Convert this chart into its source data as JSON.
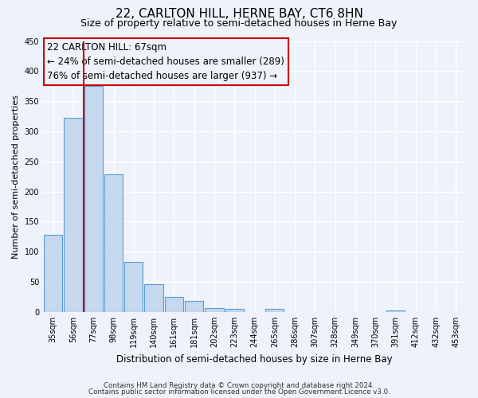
{
  "title": "22, CARLTON HILL, HERNE BAY, CT6 8HN",
  "subtitle": "Size of property relative to semi-detached houses in Herne Bay",
  "xlabel": "Distribution of semi-detached houses by size in Herne Bay",
  "ylabel": "Number of semi-detached properties",
  "bins": [
    "35sqm",
    "56sqm",
    "77sqm",
    "98sqm",
    "119sqm",
    "140sqm",
    "161sqm",
    "181sqm",
    "202sqm",
    "223sqm",
    "244sqm",
    "265sqm",
    "286sqm",
    "307sqm",
    "328sqm",
    "349sqm",
    "370sqm",
    "391sqm",
    "412sqm",
    "432sqm",
    "453sqm"
  ],
  "values": [
    128,
    322,
    375,
    228,
    83,
    46,
    25,
    19,
    7,
    5,
    0,
    5,
    0,
    0,
    0,
    0,
    0,
    2,
    0,
    0,
    0
  ],
  "bar_color": "#c5d8ed",
  "bar_edge_color": "#5a9fd4",
  "vline_color": "#cc0000",
  "annotation_line1": "22 CARLTON HILL: 67sqm",
  "annotation_line2": "← 24% of semi-detached houses are smaller (289)",
  "annotation_line3": "76% of semi-detached houses are larger (937) →",
  "annotation_box_edge": "#cc0000",
  "ylim": [
    0,
    450
  ],
  "yticks": [
    0,
    50,
    100,
    150,
    200,
    250,
    300,
    350,
    400,
    450
  ],
  "footer_line1": "Contains HM Land Registry data © Crown copyright and database right 2024.",
  "footer_line2": "Contains public sector information licensed under the Open Government Licence v3.0.",
  "bg_color": "#eef3fb",
  "grid_color": "#ffffff"
}
